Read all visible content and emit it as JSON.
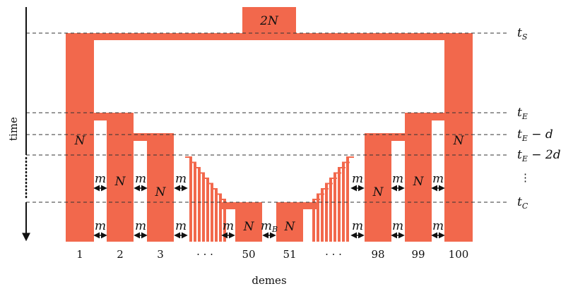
{
  "labels": {
    "ancestral": "2N",
    "deme_size": "N",
    "migration": "m",
    "bottleneck_migration": "m",
    "bottleneck_migration_sub": "B",
    "time_axis": "time",
    "x_axis": "demes"
  },
  "time_markers": {
    "t_S": {
      "base": "t",
      "sub": "S",
      "suffix": ""
    },
    "t_E": {
      "base": "t",
      "sub": "E",
      "suffix": ""
    },
    "t_E_d": {
      "base": "t",
      "sub": "E",
      "suffix": " − d"
    },
    "t_E_2d": {
      "base": "t",
      "sub": "E",
      "suffix": " − 2d"
    },
    "vdots": "⋮",
    "t_C": {
      "base": "t",
      "sub": "C",
      "suffix": ""
    }
  },
  "demes": [
    "1",
    "2",
    "3",
    "· · ·",
    "50",
    "51",
    "· · ·",
    "98",
    "99",
    "100"
  ],
  "colors": {
    "population": "#f2684c",
    "lines": "#333333",
    "text": "#111111"
  }
}
